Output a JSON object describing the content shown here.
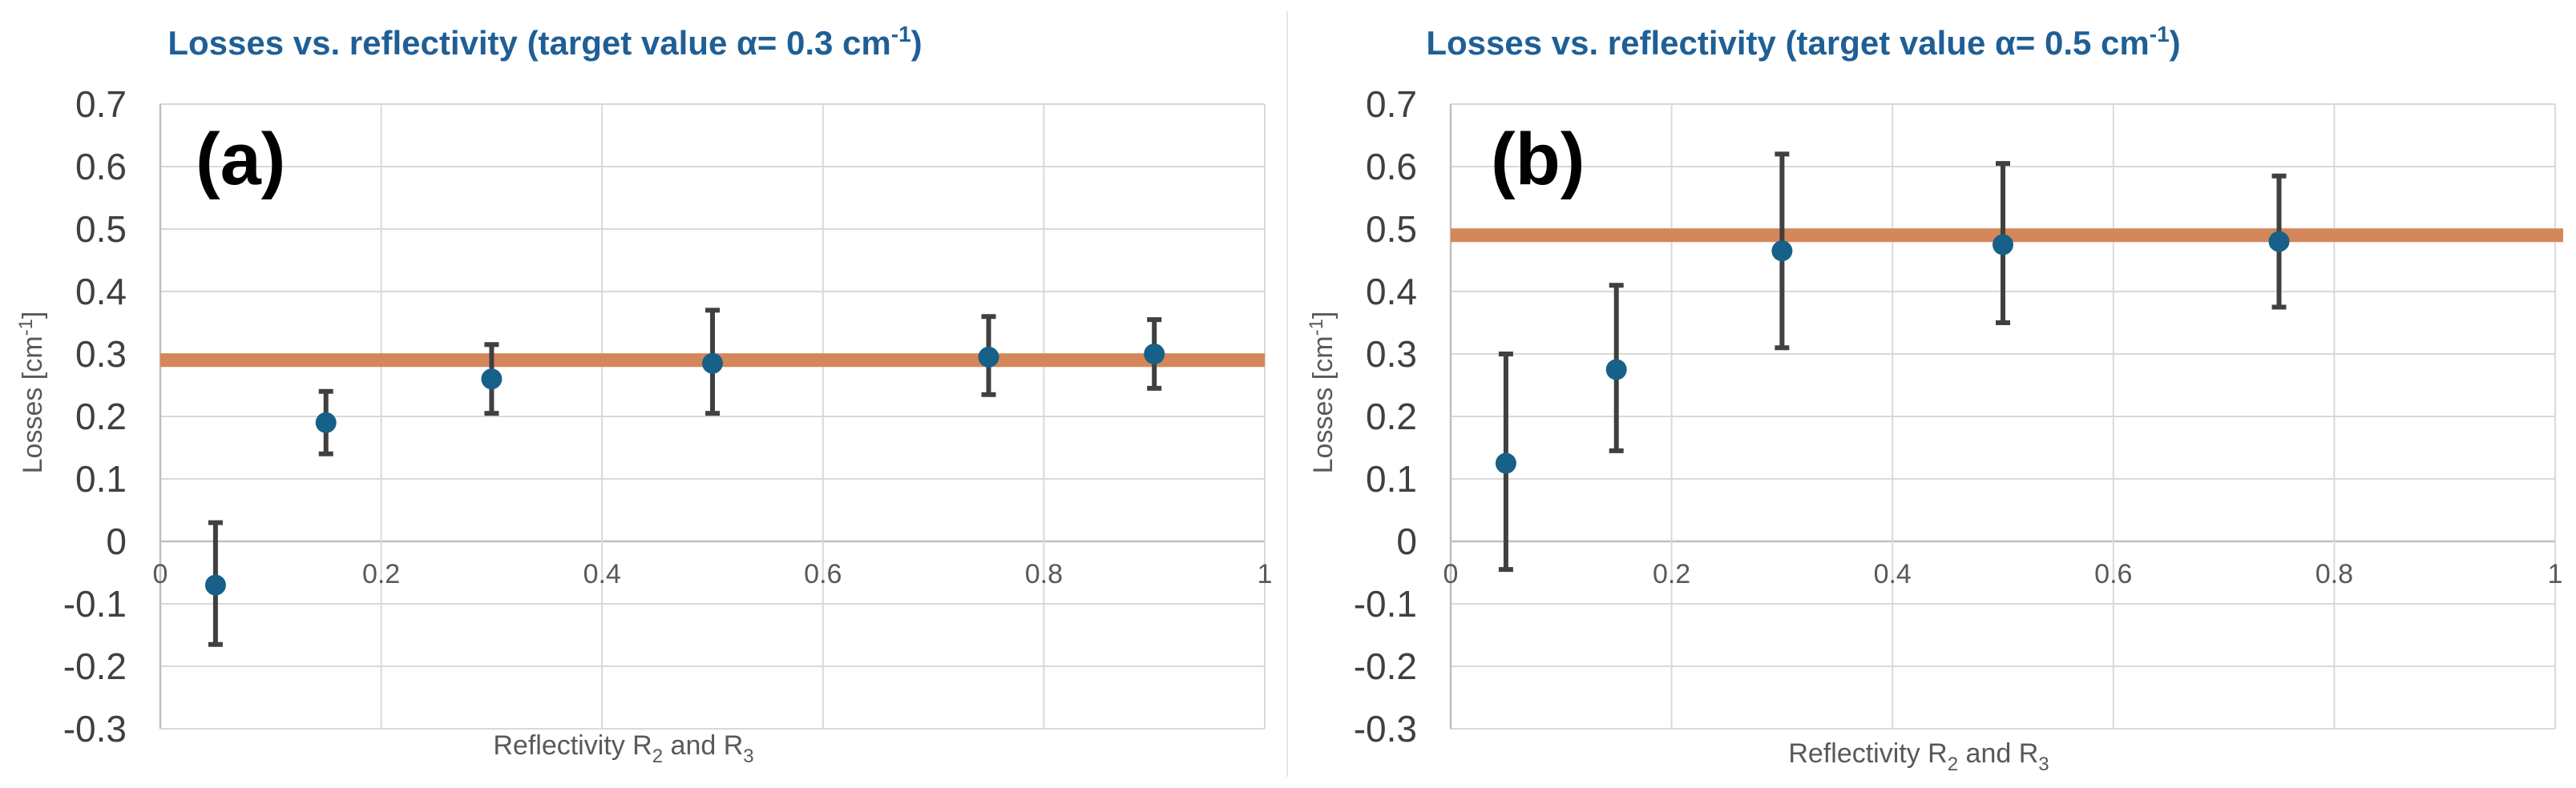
{
  "chart_data": [
    {
      "type": "scatter",
      "panel_label": "(a)",
      "title_prefix": "Losses vs. reflectivity (target value α= 0.3 cm",
      "title_sup": "-1",
      "title_suffix": ")",
      "xlabel_main": "Reflectivity R",
      "xlabel_sub1": "2",
      "xlabel_mid": " and R",
      "xlabel_sub2": "3",
      "ylabel_main": "Losses [cm",
      "ylabel_sup": "-1",
      "ylabel_end": "]",
      "xlim": [
        0,
        1
      ],
      "ylim": [
        -0.3,
        0.7
      ],
      "x_ticks": [
        "0",
        "0.2",
        "0.4",
        "0.6",
        "0.8",
        "1"
      ],
      "y_ticks": [
        "0.7",
        "0.6",
        "0.5",
        "0.4",
        "0.3",
        "0.2",
        "0.1",
        "0",
        "-0.1",
        "-0.2",
        "-0.3"
      ],
      "target_value": 0.29,
      "points": [
        {
          "x": 0.05,
          "y": -0.07,
          "err_low": -0.165,
          "err_high": 0.03
        },
        {
          "x": 0.15,
          "y": 0.19,
          "err_low": 0.14,
          "err_high": 0.24
        },
        {
          "x": 0.3,
          "y": 0.26,
          "err_low": 0.205,
          "err_high": 0.315
        },
        {
          "x": 0.5,
          "y": 0.285,
          "err_low": 0.205,
          "err_high": 0.37
        },
        {
          "x": 0.75,
          "y": 0.295,
          "err_low": 0.235,
          "err_high": 0.36
        },
        {
          "x": 0.9,
          "y": 0.3,
          "err_low": 0.245,
          "err_high": 0.355
        }
      ]
    },
    {
      "type": "scatter",
      "panel_label": "(b)",
      "title_prefix": "Losses vs. reflectivity (target value α= 0.5 cm",
      "title_sup": "-1",
      "title_suffix": ")",
      "xlabel_main": "Reflectivity R",
      "xlabel_sub1": "2",
      "xlabel_mid": " and R",
      "xlabel_sub2": "3",
      "ylabel_main": "Losses [cm",
      "ylabel_sup": "-1",
      "ylabel_end": "]",
      "xlim": [
        0,
        1
      ],
      "ylim": [
        -0.3,
        0.7
      ],
      "x_ticks": [
        "0",
        "0.2",
        "0.4",
        "0.6",
        "0.8",
        "1"
      ],
      "y_ticks": [
        "0.7",
        "0.6",
        "0.5",
        "0.4",
        "0.3",
        "0.2",
        "0.1",
        "0",
        "-0.1",
        "-0.2",
        "-0.3"
      ],
      "target_value": 0.49,
      "points": [
        {
          "x": 0.05,
          "y": 0.125,
          "err_low": -0.045,
          "err_high": 0.3
        },
        {
          "x": 0.15,
          "y": 0.275,
          "err_low": 0.145,
          "err_high": 0.41
        },
        {
          "x": 0.3,
          "y": 0.465,
          "err_low": 0.31,
          "err_high": 0.62
        },
        {
          "x": 0.5,
          "y": 0.475,
          "err_low": 0.35,
          "err_high": 0.605
        },
        {
          "x": 0.75,
          "y": 0.48,
          "err_low": 0.375,
          "err_high": 0.585
        }
      ]
    }
  ]
}
